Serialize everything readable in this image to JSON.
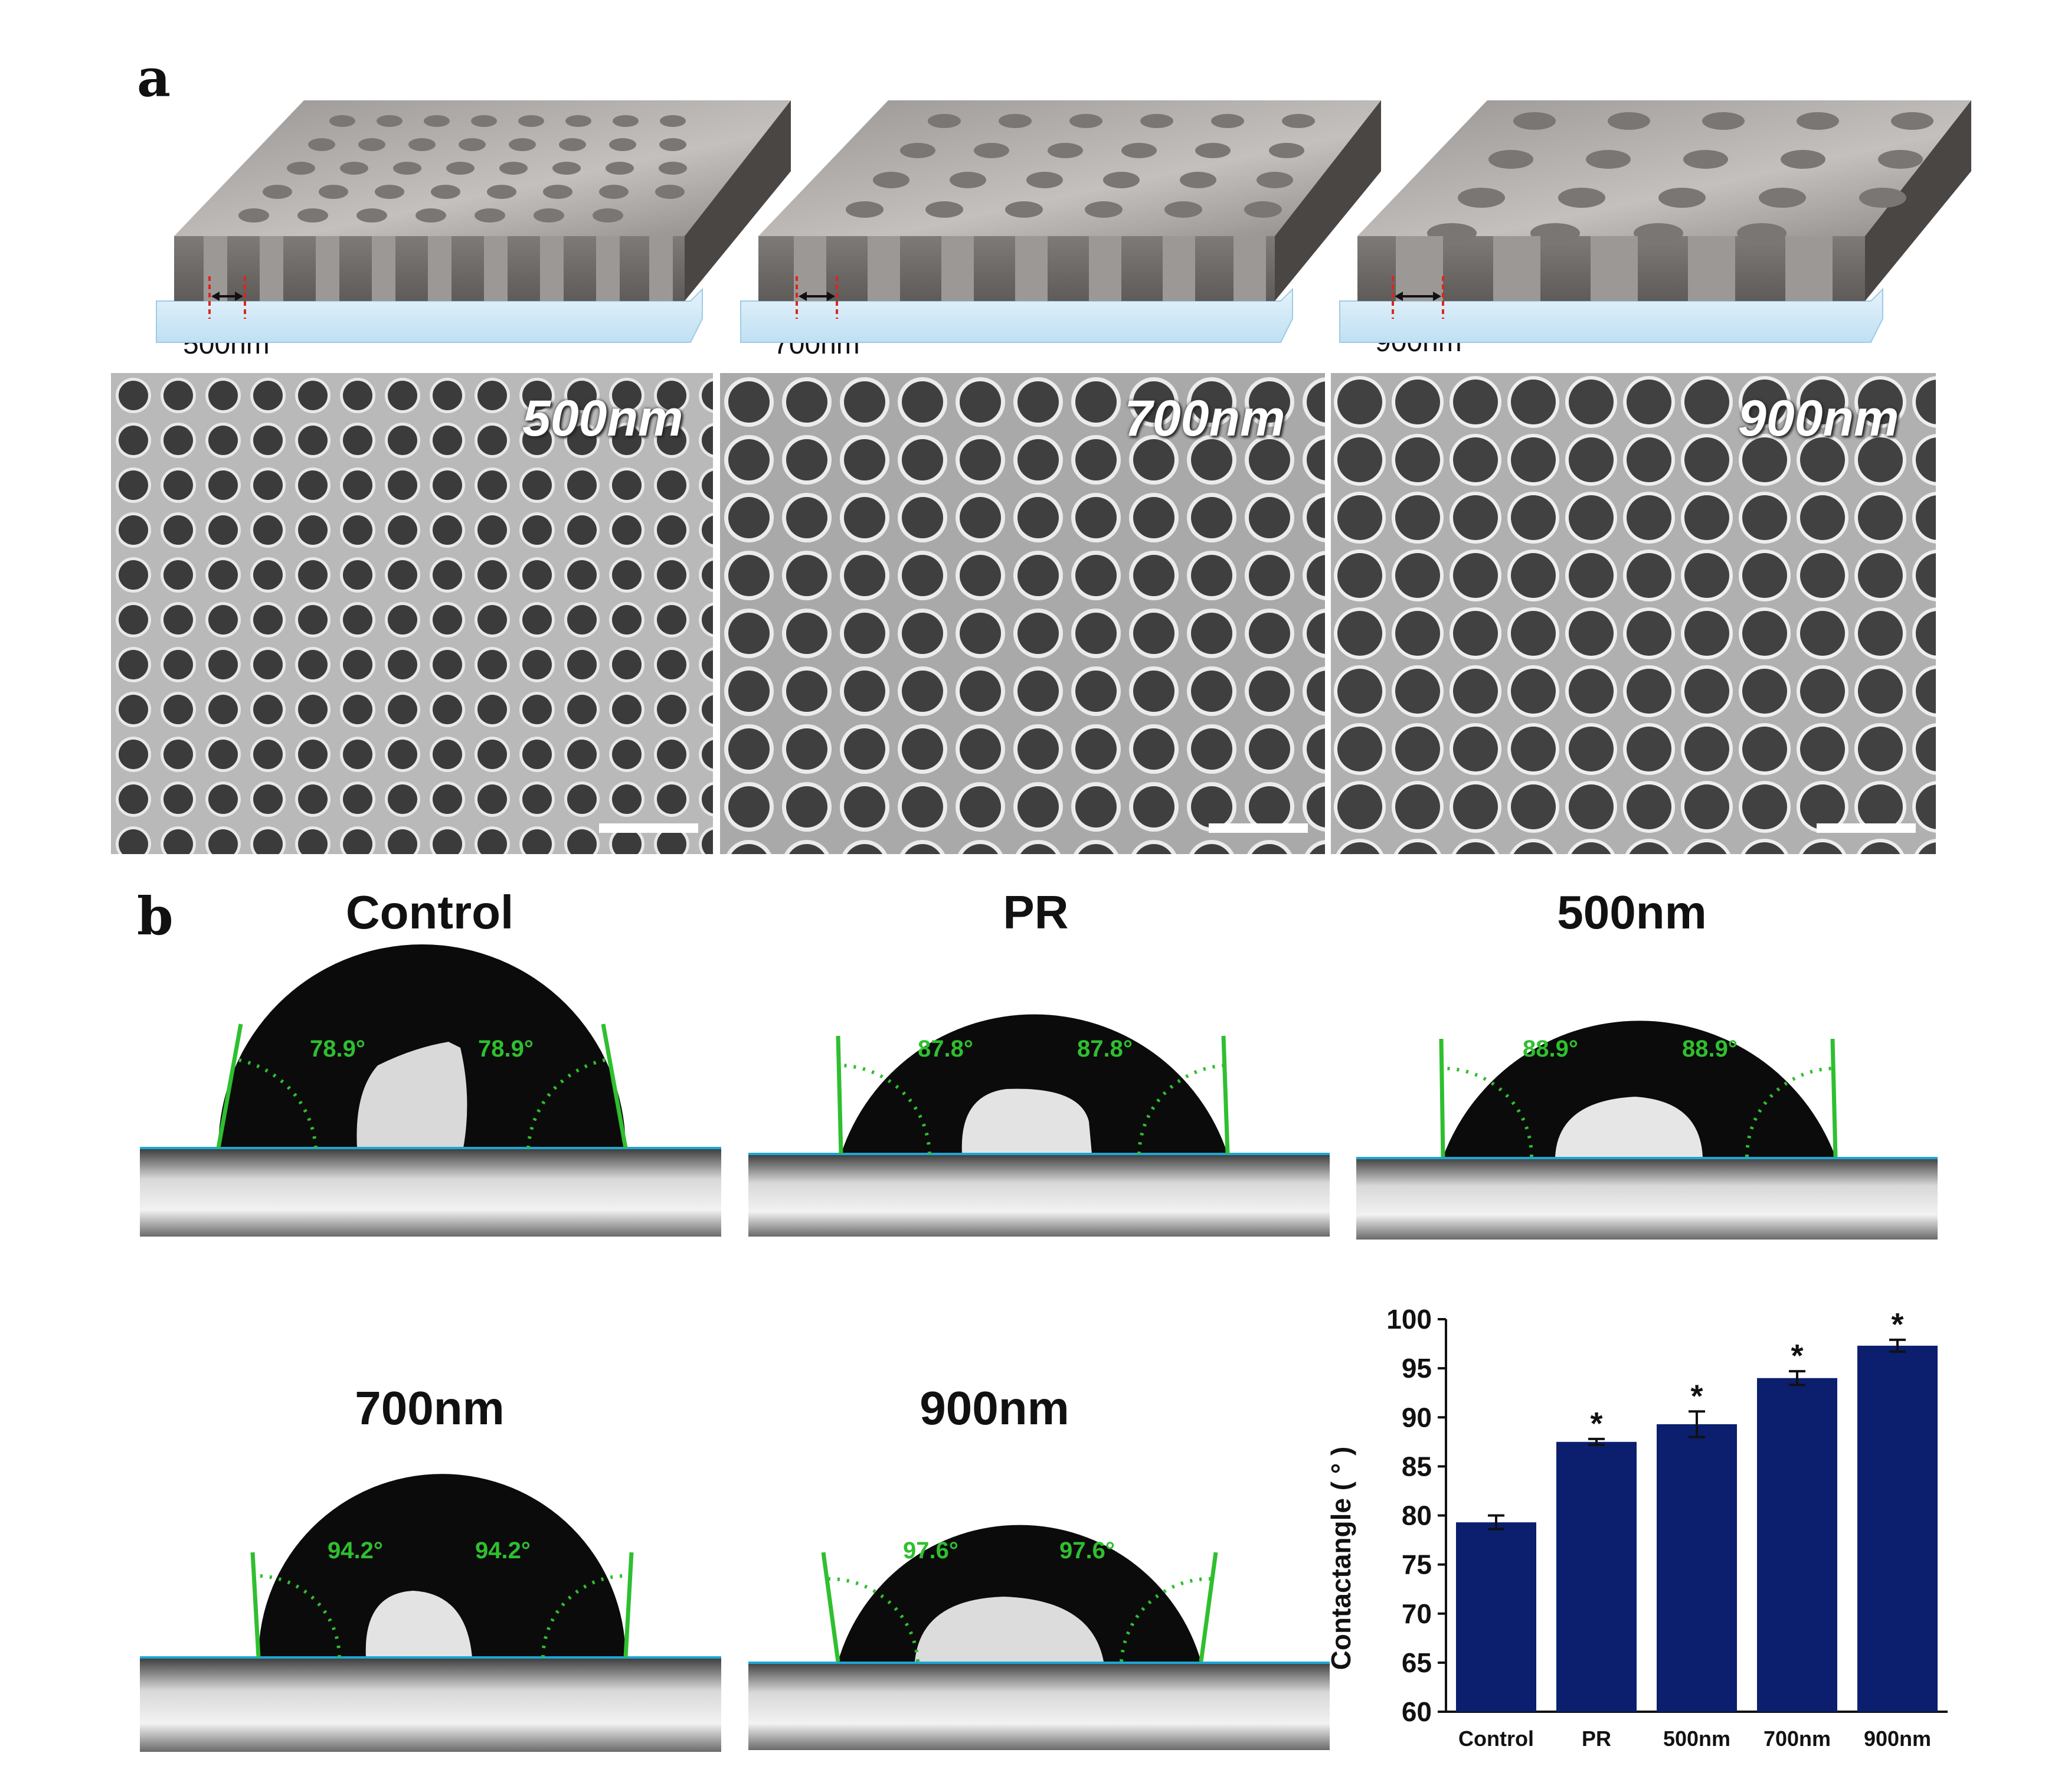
{
  "panel_a": {
    "letter": "a",
    "schematics": [
      {
        "label": "500nm"
      },
      {
        "label": "700nm"
      },
      {
        "label": "900nm"
      }
    ],
    "sem_images": [
      {
        "label": "500nm"
      },
      {
        "label": "700nm"
      },
      {
        "label": "900nm"
      }
    ]
  },
  "panel_b": {
    "letter": "b",
    "drops": [
      {
        "title": "Control",
        "left_angle": "78.9°",
        "right_angle": "78.9°"
      },
      {
        "title": "PR",
        "left_angle": "87.8°",
        "right_angle": "87.8°"
      },
      {
        "title": "500nm",
        "left_angle": "88.9°",
        "right_angle": "88.9°"
      },
      {
        "title": "700nm",
        "left_angle": "94.2°",
        "right_angle": "94.2°"
      },
      {
        "title": "900nm",
        "left_angle": "97.6°",
        "right_angle": "97.6°"
      }
    ]
  },
  "colors": {
    "bar_fill": "#0b1f6e",
    "angle_green": "#2fbf2f",
    "baseline_blue": "#1aa7d8",
    "scale_bar": "#ffffff"
  },
  "chart_data": {
    "type": "bar",
    "categories": [
      "Control",
      "PR",
      "500nm",
      "700nm",
      "900nm"
    ],
    "values": [
      79.3,
      87.5,
      89.3,
      94.0,
      97.3
    ],
    "errors": [
      0.7,
      0.3,
      1.3,
      0.7,
      0.6
    ],
    "significance": [
      "",
      "*",
      "*",
      "*",
      "*"
    ],
    "ylabel": "Contactangle ( ° )",
    "ylim": [
      60,
      100
    ],
    "yticks": [
      "60",
      "65",
      "70",
      "75",
      "80",
      "85",
      "90",
      "95",
      "100"
    ],
    "grid": false
  }
}
